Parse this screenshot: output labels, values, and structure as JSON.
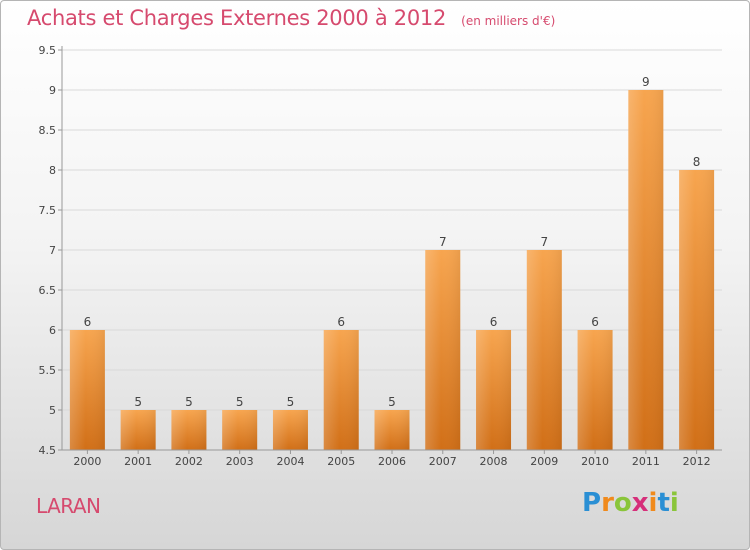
{
  "title": "Achats et Charges Externes 2000 à 2012",
  "unit": "(en milliers d'€)",
  "commune": "LARAN",
  "logo": {
    "text": "Proxiti",
    "letters": [
      "P",
      "r",
      "o",
      "x",
      "i",
      "t",
      "i"
    ],
    "colors": [
      "#2a8fd4",
      "#f08a1c",
      "#8ac53a",
      "#d62f7a",
      "#f08a1c",
      "#2a8fd4",
      "#8ac53a"
    ]
  },
  "colors": {
    "title": "#d64a6e",
    "bar_top": "#f7a54f",
    "bar_bottom": "#d16f17",
    "grid": "#d9d9d9",
    "axis": "#999999",
    "text": "#444444"
  },
  "chart_data": {
    "type": "bar",
    "categories": [
      "2000",
      "2001",
      "2002",
      "2003",
      "2004",
      "2005",
      "2006",
      "2007",
      "2008",
      "2009",
      "2010",
      "2011",
      "2012"
    ],
    "values": [
      6,
      5,
      5,
      5,
      5,
      6,
      5,
      7,
      6,
      7,
      6,
      9,
      8
    ],
    "data_labels": [
      "6",
      "5",
      "5",
      "5",
      "5",
      "6",
      "5",
      "7",
      "6",
      "7",
      "6",
      "9",
      "8"
    ],
    "yticks": [
      "4.5",
      "5",
      "5.5",
      "6",
      "6.5",
      "7",
      "7.5",
      "8",
      "8.5",
      "9",
      "9.5"
    ],
    "ylim": [
      4.5,
      9.5
    ],
    "grid": true,
    "legend": "none"
  }
}
